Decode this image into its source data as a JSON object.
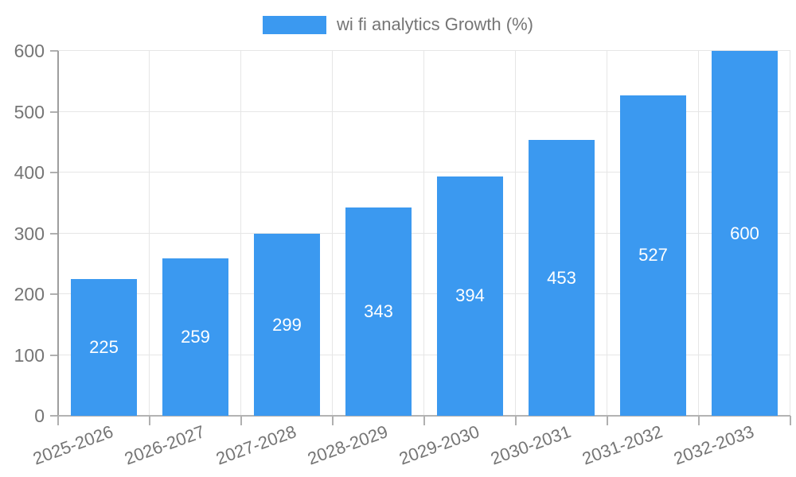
{
  "legend": {
    "label": "wi fi analytics Growth (%)"
  },
  "colors": {
    "bar": "#3b99f0",
    "axis_text": "#757575",
    "grid": "#e6e6e6",
    "axis_line": "#9e9e9e",
    "tick": "#b0b0b0",
    "bar_label_text": "#ffffff"
  },
  "chart_data": {
    "type": "bar",
    "title": "",
    "series_name": "wi fi analytics Growth (%)",
    "categories": [
      "2025-2026",
      "2026-2027",
      "2027-2028",
      "2028-2029",
      "2029-2030",
      "2030-2031",
      "2031-2032",
      "2032-2033"
    ],
    "values": [
      225,
      259,
      299,
      343,
      394,
      453,
      527,
      600
    ],
    "xlabel": "",
    "ylabel": "",
    "ylim": [
      0,
      600
    ],
    "yticks": [
      0,
      100,
      200,
      300,
      400,
      500,
      600
    ],
    "grid": true,
    "legend_position": "top",
    "bar_labels_inside": true,
    "x_label_rotation_deg": -20
  }
}
